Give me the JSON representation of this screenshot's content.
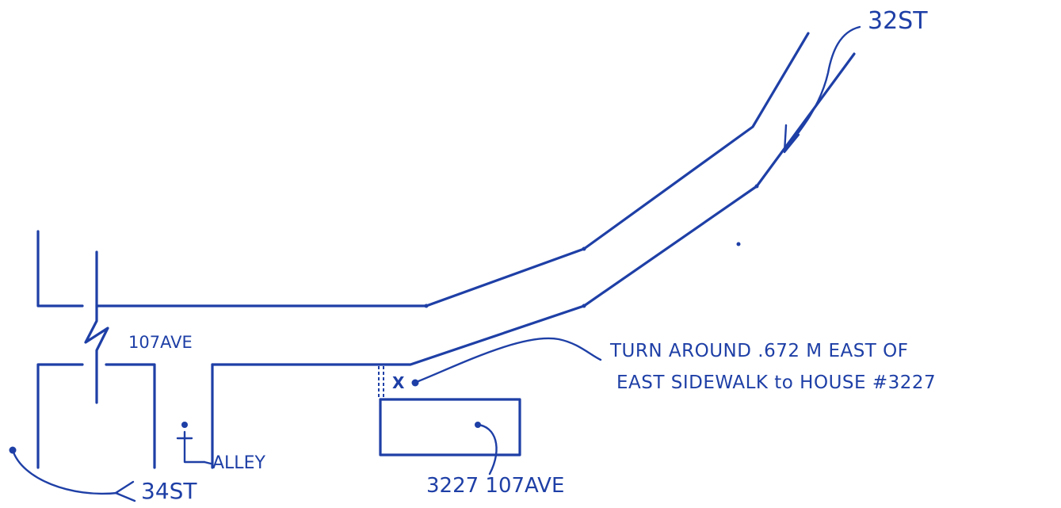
{
  "labels": {
    "street_32": "32ST",
    "avenue_107": "107AVE",
    "turn_around_line1": "TURN AROUND  .672 M EAST OF",
    "turn_around_line2": "EAST SIDEWALK to HOUSE #3227",
    "street_34": "34ST",
    "alley": "ALLEY",
    "house_address": "3227 107AVE",
    "x_mark": "X"
  },
  "colors": {
    "ink": "#1e3fa6",
    "background": "#ffffff"
  }
}
